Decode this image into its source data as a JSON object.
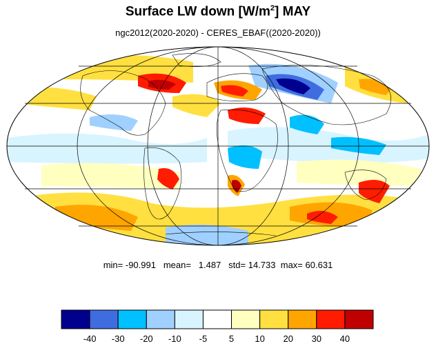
{
  "title": {
    "text": "Surface LW down [W/m",
    "superscript": "2",
    "suffix": "]  MAY"
  },
  "subtitle": "ngc2012(2020-2020) - CERES_EBAF((2020-2020))",
  "stats": {
    "min_label": "min=",
    "min": "-90.991",
    "mean_label": "mean=",
    "mean": "1.487",
    "std_label": "std=",
    "std": "14.733",
    "max_label": "max=",
    "max": "60.631"
  },
  "colorbar": {
    "colors": [
      "#00008f",
      "#3f6de0",
      "#00c0ff",
      "#a0d0ff",
      "#d8f4ff",
      "#ffffff",
      "#ffffc0",
      "#ffe040",
      "#ffa500",
      "#ff1c00",
      "#c00000"
    ],
    "tick_labels": [
      "-40",
      "-30",
      "-20",
      "-10",
      "-5",
      "5",
      "10",
      "20",
      "30",
      "40"
    ]
  },
  "map": {
    "projection": "Mollweide",
    "colors": {
      "land_outline": "#000000",
      "grid": "#000000"
    }
  }
}
